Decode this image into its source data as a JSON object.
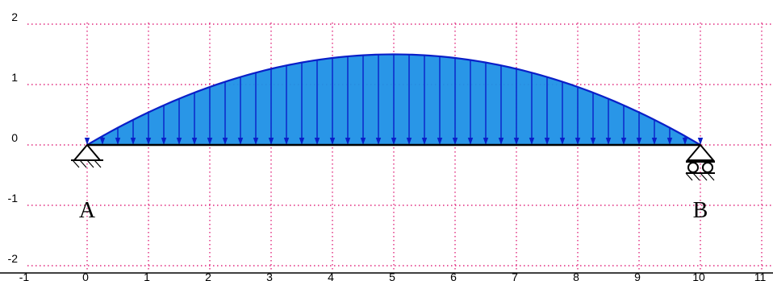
{
  "chart_data": {
    "type": "area",
    "xlim": [
      -1,
      11
    ],
    "ylim": [
      -2,
      2
    ],
    "x_ticks": [
      "-1",
      "0",
      "1",
      "2",
      "3",
      "4",
      "5",
      "6",
      "7",
      "8",
      "9",
      "10",
      "11"
    ],
    "y_ticks": [
      "2",
      "1",
      "0",
      "-1",
      "-2"
    ],
    "grid": true,
    "beam": {
      "x_start": 0,
      "x_end": 10,
      "y": 0
    },
    "distributed_load": {
      "shape": "parabolic",
      "x_start": 0,
      "x_end": 10,
      "peak_value": 1.5,
      "peak_x": 5,
      "arrow_count": 41,
      "direction": "down"
    },
    "supports": [
      {
        "type": "pin",
        "x": 0,
        "label": "A"
      },
      {
        "type": "roller",
        "x": 10,
        "label": "B"
      }
    ],
    "colors": {
      "load_fill": "#1e90e6",
      "load_stroke": "#0a1fc8",
      "grid": "#e0297e",
      "beam": "#000000"
    }
  }
}
